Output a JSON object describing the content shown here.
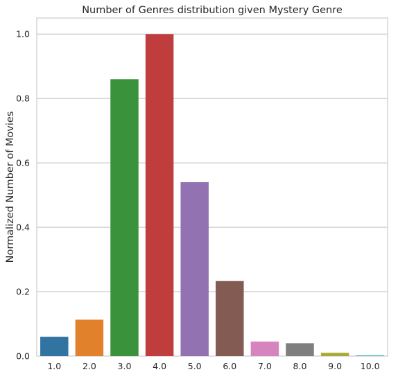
{
  "chart_data": {
    "type": "bar",
    "title": "Number of Genres distribution given Mystery Genre",
    "xlabel": "",
    "ylabel": "Normalized Number of Movies",
    "categories": [
      "1.0",
      "2.0",
      "3.0",
      "4.0",
      "5.0",
      "6.0",
      "7.0",
      "8.0",
      "9.0",
      "10.0"
    ],
    "values": [
      0.06,
      0.113,
      0.86,
      1.0,
      0.54,
      0.233,
      0.045,
      0.04,
      0.01,
      0.002
    ],
    "colors": [
      "#3274a1",
      "#e1812c",
      "#3a923a",
      "#c03d3e",
      "#9372b2",
      "#845b53",
      "#d684bd",
      "#7f7f7f",
      "#a9aa35",
      "#2eabb8"
    ],
    "ylim": [
      0,
      1.05
    ],
    "yticks": [
      "0.0",
      "0.2",
      "0.4",
      "0.6",
      "0.8",
      "1.0"
    ],
    "grid": true,
    "legend": "none"
  }
}
